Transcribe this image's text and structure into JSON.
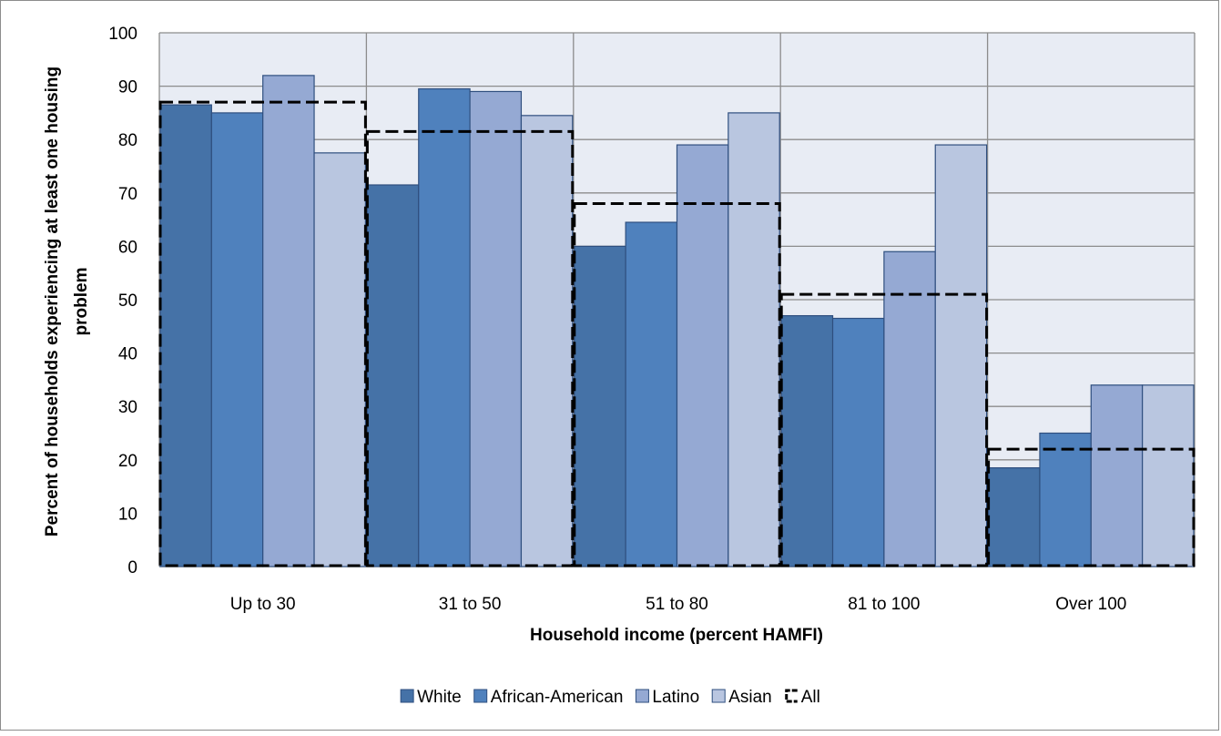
{
  "chart_data": {
    "type": "bar",
    "title": "",
    "xlabel": "Household income (percent HAMFI)",
    "ylabel": "Percent of households  experiencing at least one housing problem",
    "ylabel_lines": [
      "Percent of households  experiencing at least one housing",
      "problem"
    ],
    "categories": [
      "Up to 30",
      "31 to 50",
      "51 to 80",
      "81 to 100",
      "Over 100"
    ],
    "ylim": [
      0,
      100
    ],
    "yticks": [
      0,
      10,
      20,
      30,
      40,
      50,
      60,
      70,
      80,
      90,
      100
    ],
    "grid": true,
    "legend_position": "bottom",
    "series": [
      {
        "name": "White",
        "values": [
          86.5,
          71.5,
          60,
          47,
          18.5
        ],
        "color": "#4572a7"
      },
      {
        "name": "African-American",
        "values": [
          85,
          89.5,
          64.5,
          46.5,
          25
        ],
        "color": "#4f81bd"
      },
      {
        "name": "Latino",
        "values": [
          92,
          89,
          79,
          59,
          34
        ],
        "color": "#95a9d3"
      },
      {
        "name": "Asian",
        "values": [
          77.5,
          84.5,
          85,
          79,
          34
        ],
        "color": "#b9c6e0"
      }
    ],
    "overlay_series": {
      "name": "All",
      "values": [
        87,
        81.5,
        68,
        51,
        22
      ],
      "style": "dashed-outline",
      "color": "#000000"
    },
    "colors": {
      "plot_background": "#e8ecf4",
      "gridline": "#8c8c8c",
      "bar_border": "#2f4f7f"
    }
  }
}
